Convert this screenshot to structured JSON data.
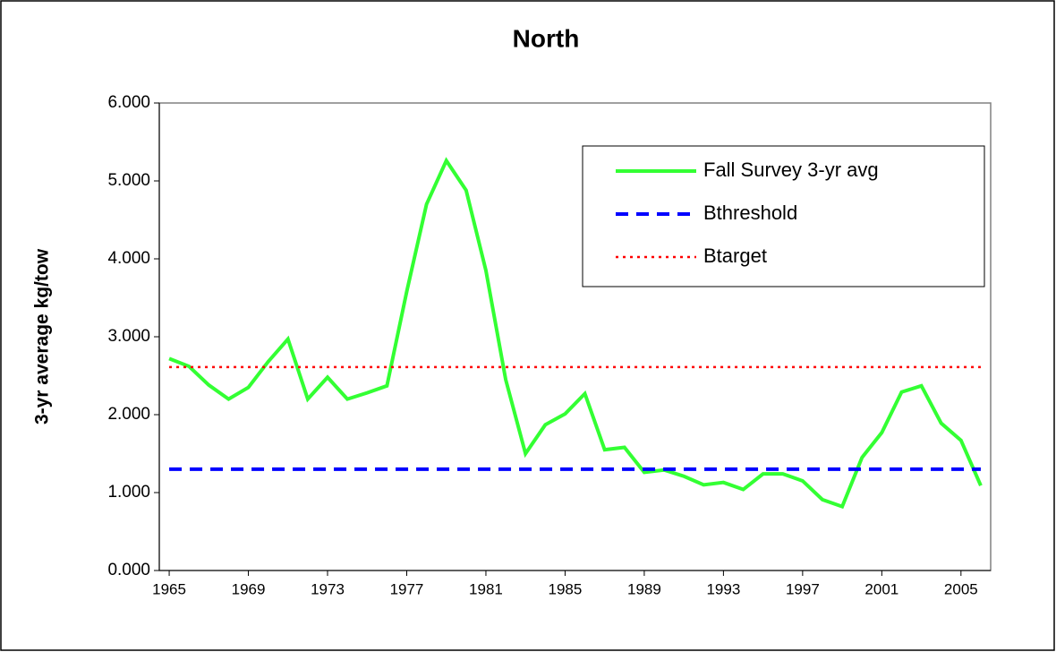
{
  "chart_data": {
    "type": "line",
    "title": "North",
    "y_label": "3-yr average kg/tow",
    "x": [
      1965,
      1966,
      1967,
      1968,
      1969,
      1970,
      1971,
      1972,
      1973,
      1974,
      1975,
      1976,
      1977,
      1978,
      1979,
      1980,
      1981,
      1982,
      1983,
      1984,
      1985,
      1986,
      1987,
      1988,
      1989,
      1990,
      1991,
      1992,
      1993,
      1994,
      1995,
      1996,
      1997,
      1998,
      1999,
      2000,
      2001,
      2002,
      2003,
      2004,
      2005,
      2006
    ],
    "series": [
      {
        "name": "Fall Survey 3-yr avg",
        "color": "#33ff33",
        "style": "solid",
        "values": [
          2.72,
          2.62,
          2.38,
          2.2,
          2.35,
          2.68,
          2.97,
          2.2,
          2.48,
          2.2,
          2.28,
          2.37,
          3.58,
          4.7,
          5.26,
          4.88,
          3.85,
          2.45,
          1.5,
          1.87,
          2.01,
          2.27,
          1.55,
          1.58,
          1.26,
          1.29,
          1.21,
          1.1,
          1.13,
          1.04,
          1.24,
          1.24,
          1.15,
          0.91,
          0.82,
          1.45,
          1.77,
          2.29,
          2.37,
          1.89,
          1.67,
          1.09
        ]
      },
      {
        "name": "Bthreshold",
        "color": "#0000ff",
        "style": "dashed",
        "value": 1.3
      },
      {
        "name": "Btarget",
        "color": "#ff0000",
        "style": "dotted",
        "value": 2.61
      }
    ],
    "xlim": [
      1964.5,
      2006.5
    ],
    "xticks": [
      1965,
      1969,
      1973,
      1977,
      1981,
      1985,
      1989,
      1993,
      1997,
      2001,
      2005
    ],
    "ylim": [
      0,
      6
    ],
    "yticks": [
      {
        "value": 0,
        "label": "0.000"
      },
      {
        "value": 1,
        "label": "1.000"
      },
      {
        "value": 2,
        "label": "2.000"
      },
      {
        "value": 3,
        "label": "3.000"
      },
      {
        "value": 4,
        "label": "4.000"
      },
      {
        "value": 5,
        "label": "5.000"
      },
      {
        "value": 6,
        "label": "6.000"
      }
    ],
    "legend": "upper right"
  }
}
